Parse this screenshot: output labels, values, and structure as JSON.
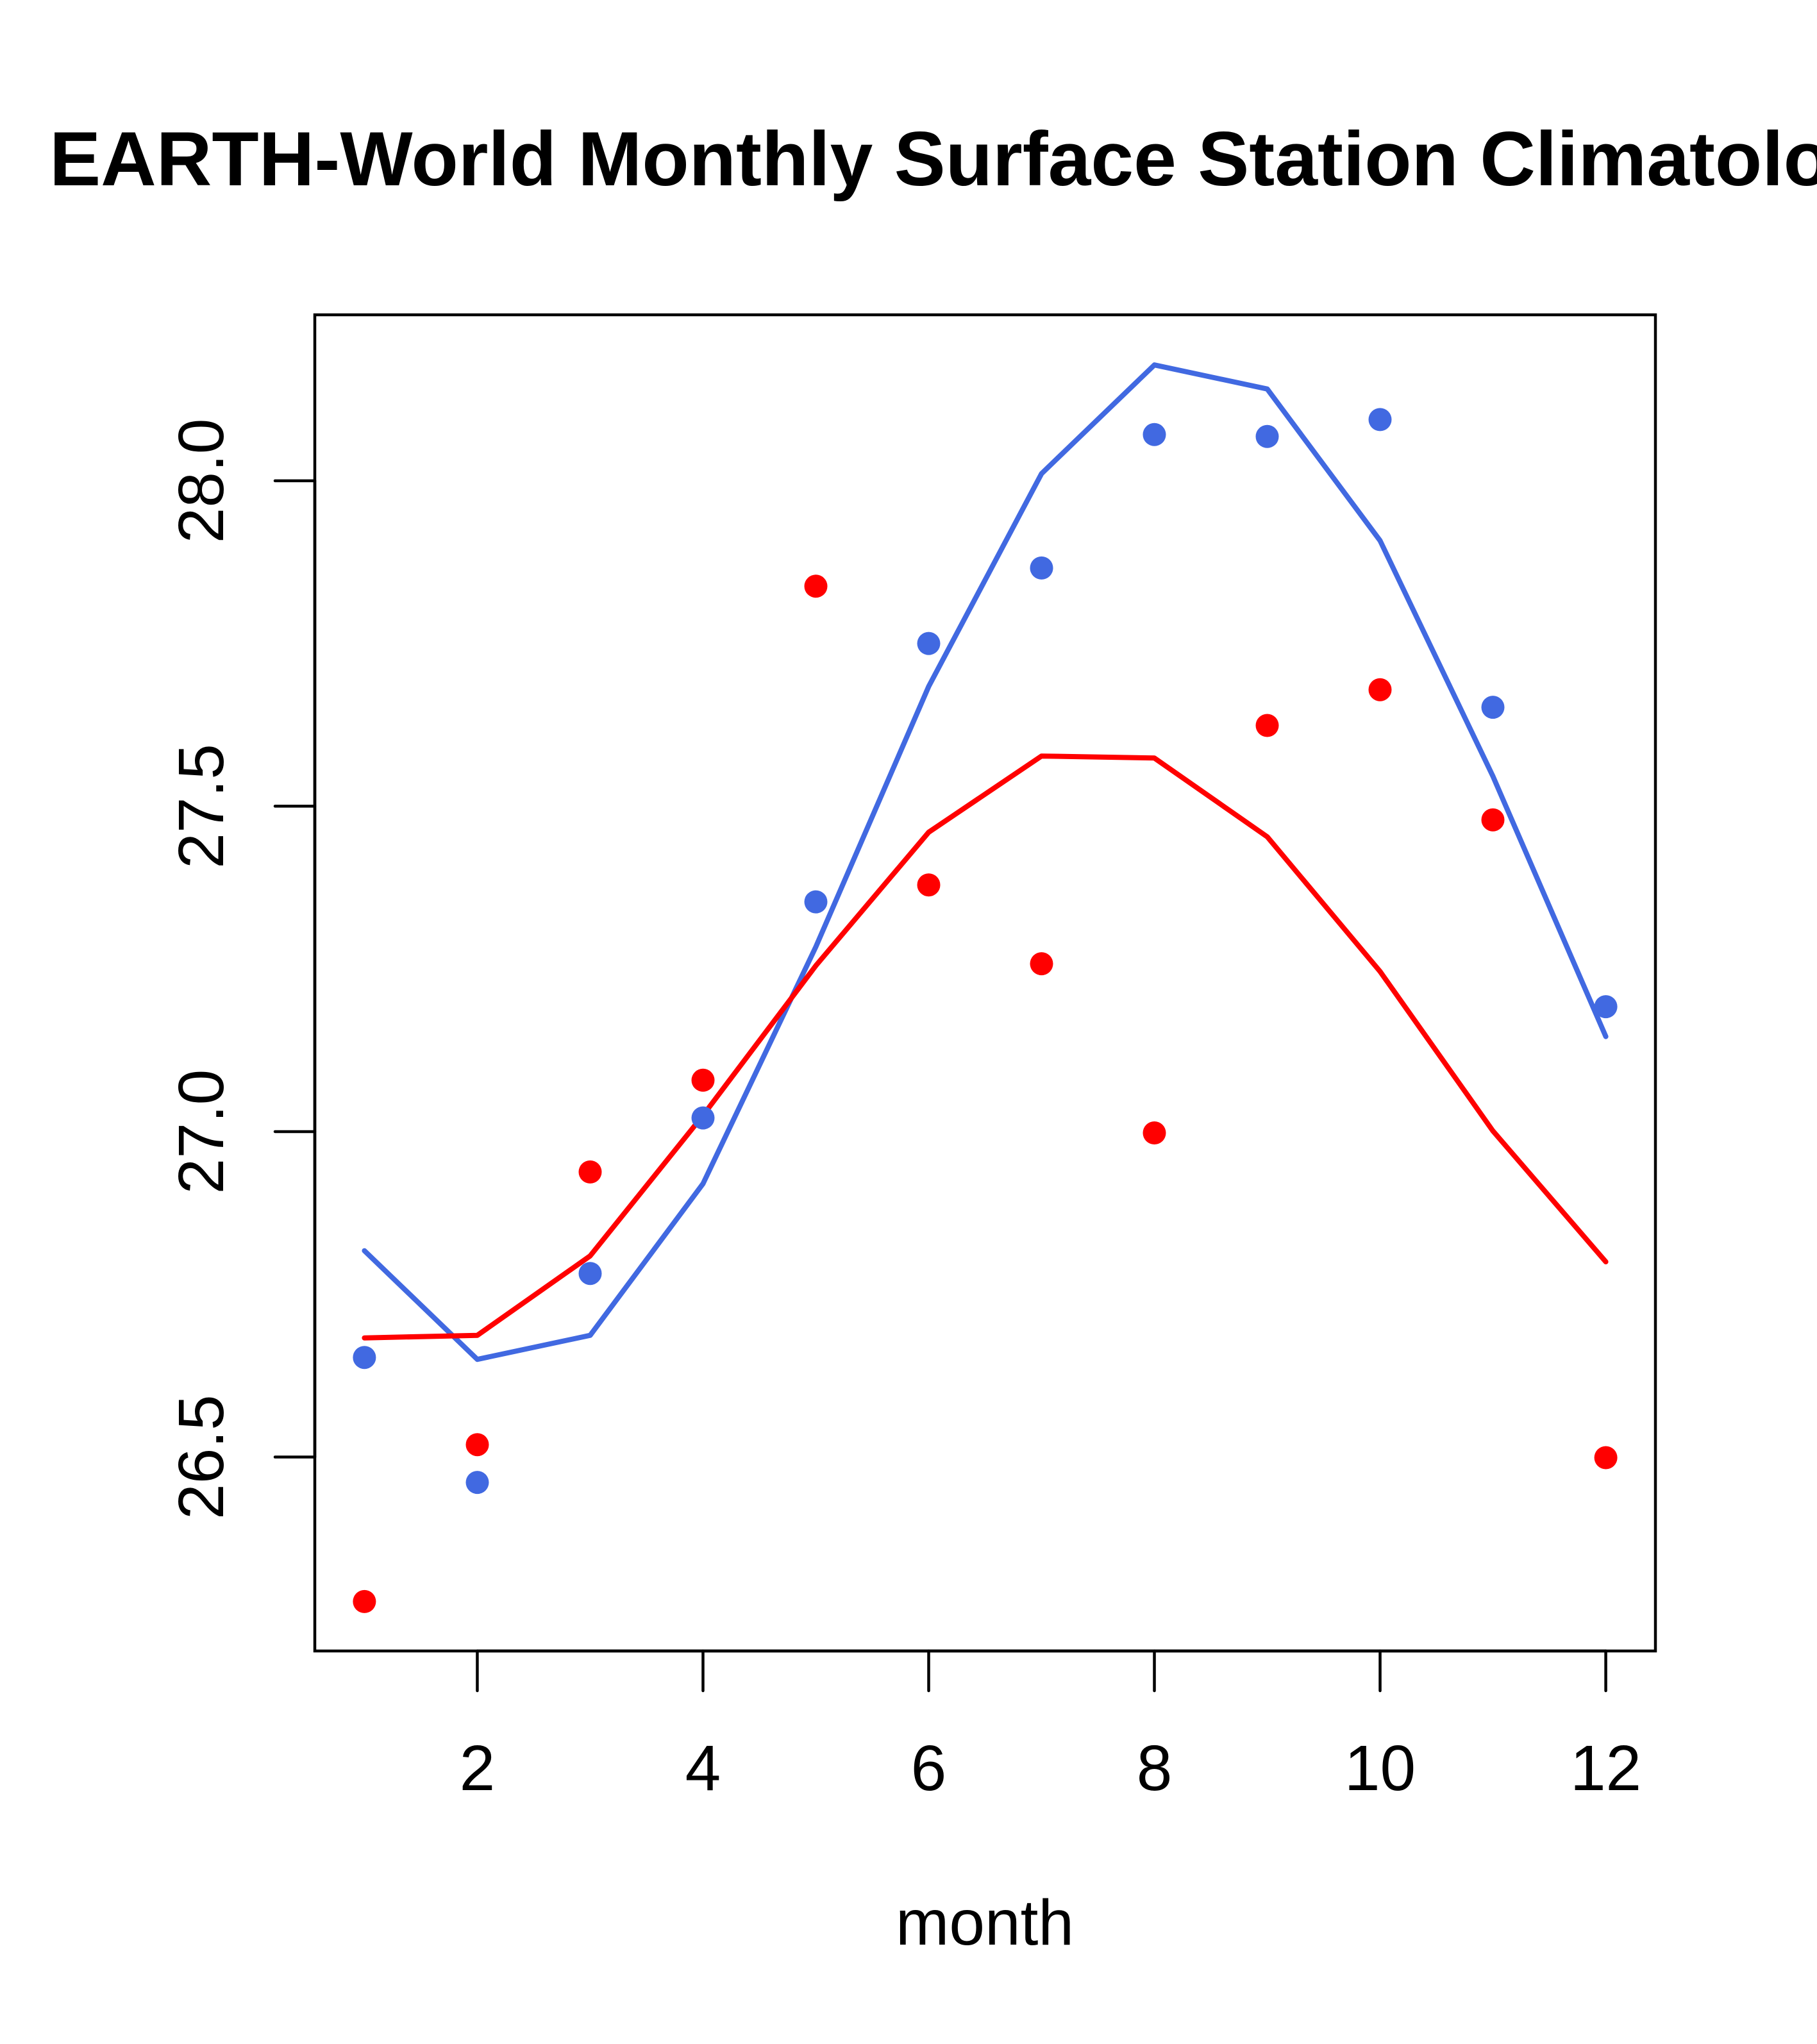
{
  "chart_data": {
    "type": "line",
    "title": "EARTH-World Monthly Surface Station Climatology",
    "xlabel": "month",
    "ylabel": "",
    "xlim": [
      0.56,
      12.44
    ],
    "ylim": [
      26.202,
      28.255
    ],
    "x": [
      1,
      2,
      3,
      4,
      5,
      6,
      7,
      8,
      9,
      10,
      11,
      12
    ],
    "x_ticks": [
      2,
      4,
      6,
      8,
      10,
      12
    ],
    "x_tick_labels": [
      "2",
      "4",
      "6",
      "8",
      "10",
      "12"
    ],
    "y_ticks": [
      26.5,
      27.0,
      27.5,
      28.0
    ],
    "y_tick_labels": [
      "26.5",
      "27.0",
      "27.5",
      "28.0"
    ],
    "grid": false,
    "legend": null,
    "series": [
      {
        "name": "blue-points",
        "kind": "scatter",
        "color": "#4169E1",
        "values": [
          26.653,
          26.461,
          26.782,
          27.021,
          27.353,
          27.75,
          27.866,
          28.071,
          28.068,
          28.094,
          27.652,
          27.192
        ]
      },
      {
        "name": "blue-line",
        "kind": "line",
        "color": "#4169E1",
        "values": [
          26.817,
          26.65,
          26.687,
          26.92,
          27.284,
          27.684,
          28.011,
          28.178,
          28.141,
          27.908,
          27.546,
          27.146
        ]
      },
      {
        "name": "red-points",
        "kind": "scatter",
        "color": "#FF0000",
        "values": [
          26.278,
          26.519,
          26.938,
          27.079,
          27.838,
          27.379,
          27.258,
          26.998,
          27.624,
          27.679,
          27.479,
          26.499
        ]
      },
      {
        "name": "red-line",
        "kind": "line",
        "color": "#FF0000",
        "values": [
          26.683,
          26.687,
          26.809,
          27.025,
          27.255,
          27.46,
          27.577,
          27.574,
          27.453,
          27.246,
          27.001,
          26.8
        ]
      }
    ]
  }
}
